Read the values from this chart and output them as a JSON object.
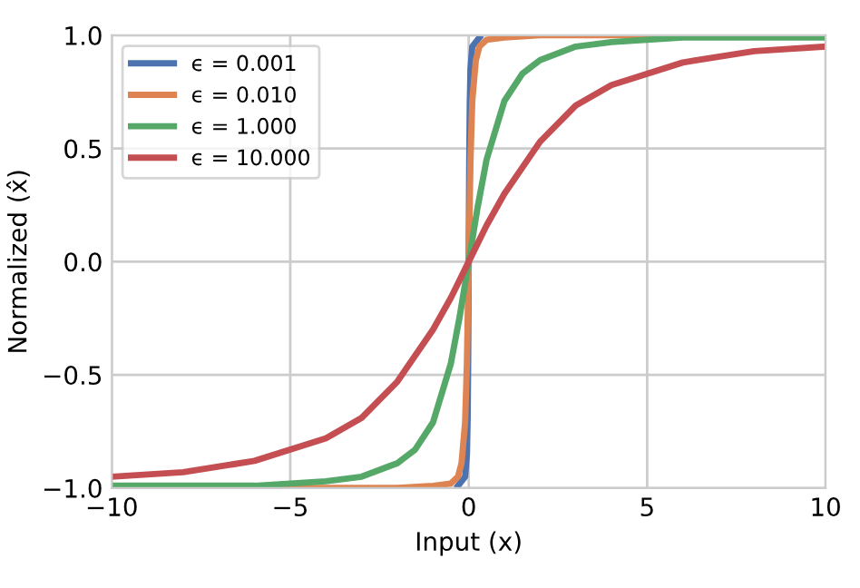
{
  "chart_data": {
    "type": "line",
    "xlabel": "Input (x)",
    "ylabel": "Normalized (x̂)",
    "xlim": [
      -10,
      10
    ],
    "xticks": [
      {
        "value": -10,
        "label": "−10"
      },
      {
        "value": -5,
        "label": "−5"
      },
      0,
      5,
      10
    ],
    "ylim": [
      -1.0,
      1.0
    ],
    "yticks": [
      {
        "value": -1.0,
        "label": "−1.0"
      },
      {
        "value": -0.5,
        "label": "−0.5"
      },
      {
        "value": 0.0,
        "label": "0.0"
      },
      {
        "value": 0.5,
        "label": "0.5"
      },
      {
        "value": 1.0,
        "label": "1.0"
      }
    ],
    "grid": true,
    "legend": "top left",
    "marker": "none",
    "line_style": "solid",
    "series": [
      {
        "name": "ϵ = 0.001",
        "color": "#4c72b0",
        "x": [
          -0.3,
          -0.1,
          -0.05,
          -0.03,
          -0.015,
          0,
          0.015,
          0.03,
          0.05,
          0.1,
          0.3
        ],
        "values": [
          -0.99,
          -0.95,
          -0.85,
          -0.69,
          -0.43,
          0,
          0.43,
          0.69,
          0.85,
          0.95,
          0.99
        ]
      },
      {
        "name": "ϵ = 0.010",
        "color": "#dd8452",
        "x": [
          -10,
          -2,
          -1,
          -0.5,
          -0.3,
          -0.2,
          -0.1,
          -0.05,
          0,
          0.05,
          0.1,
          0.2,
          0.3,
          0.5,
          1,
          2,
          10
        ],
        "values": [
          -1.0,
          -1.0,
          -0.99,
          -0.98,
          -0.95,
          -0.89,
          -0.71,
          -0.45,
          0,
          0.45,
          0.71,
          0.89,
          0.95,
          0.98,
          0.99,
          1.0,
          1.0
        ]
      },
      {
        "name": "ϵ = 1.000",
        "color": "#55a868",
        "x": [
          -10,
          -6,
          -4,
          -3,
          -2,
          -1.5,
          -1,
          -0.5,
          -0.25,
          0,
          0.25,
          0.5,
          1,
          1.5,
          2,
          3,
          4,
          6,
          10
        ],
        "values": [
          -0.99,
          -0.99,
          -0.97,
          -0.95,
          -0.89,
          -0.83,
          -0.71,
          -0.45,
          -0.24,
          0,
          0.24,
          0.45,
          0.71,
          0.83,
          0.89,
          0.95,
          0.97,
          0.99,
          0.99
        ]
      },
      {
        "name": "ϵ = 10.000",
        "color": "#c44e52",
        "x": [
          -10,
          -8,
          -6,
          -4,
          -3,
          -2,
          -1,
          -0.5,
          0,
          0.5,
          1,
          2,
          3,
          4,
          6,
          8,
          10
        ],
        "values": [
          -0.95,
          -0.93,
          -0.88,
          -0.78,
          -0.69,
          -0.53,
          -0.3,
          -0.16,
          0,
          0.16,
          0.3,
          0.53,
          0.69,
          0.78,
          0.88,
          0.93,
          0.95
        ]
      }
    ]
  }
}
